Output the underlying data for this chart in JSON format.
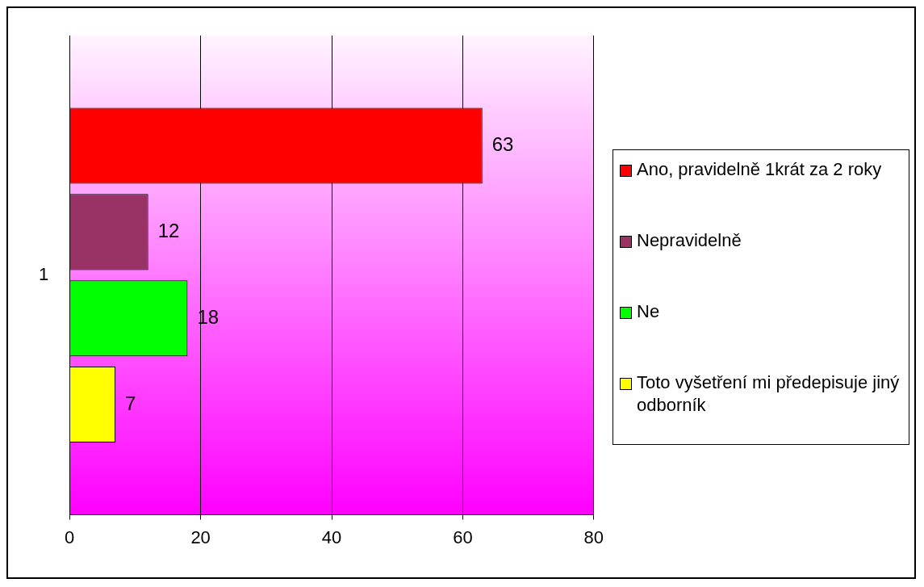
{
  "chart_data": {
    "type": "bar",
    "orientation": "horizontal",
    "categories": [
      "1"
    ],
    "series": [
      {
        "name": "Ano, pravidelně 1krát za 2 roky",
        "color": "#ff0000",
        "values": [
          63
        ]
      },
      {
        "name": "Nepravidelně",
        "color": "#993366",
        "values": [
          12
        ]
      },
      {
        "name": "Ne",
        "color": "#00ff00",
        "values": [
          18
        ]
      },
      {
        "name": "Toto vyšetření mi předepisuje jiný odborník",
        "color": "#ffff00",
        "values": [
          7
        ]
      }
    ],
    "xlim": [
      0,
      80
    ],
    "xticks": [
      0,
      20,
      40,
      60,
      80
    ],
    "grid": "x",
    "legend": "right",
    "data_labels": true
  }
}
